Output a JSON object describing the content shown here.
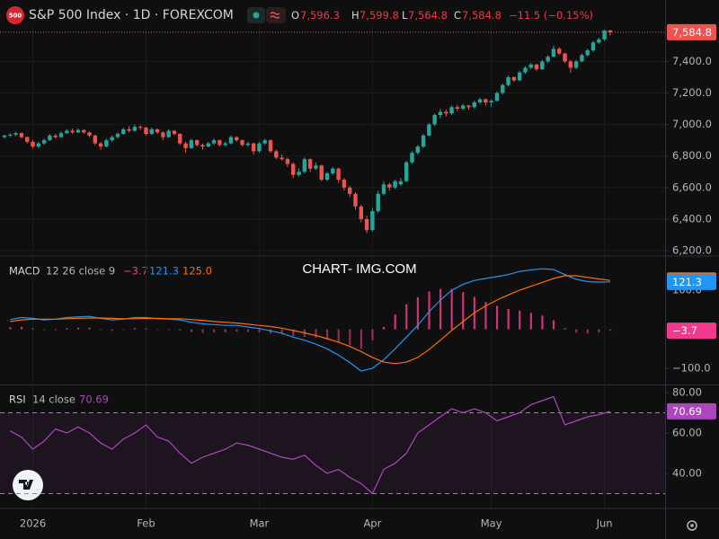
{
  "watermark": "CHART- IMG.COM",
  "chart_data": [
    {
      "type": "candlestick",
      "title": "S&P 500 Index · 1D · FOREXCOM",
      "symbol": "500",
      "legend_labels": [
        "O",
        "H",
        "L",
        "C"
      ],
      "legend_values": [
        "7,596.3",
        "7,599.8",
        "7,564.8",
        "7,584.8"
      ],
      "change": "−11.5 (−0.15%)",
      "last_label": "7,584.8",
      "up_color": "#26a69a",
      "down_color": "#ef5350",
      "grid": true,
      "xlim": [
        -0.8,
        116.7
      ],
      "xticks": [
        {
          "value": 5,
          "label": "2026"
        },
        {
          "value": 25,
          "label": "Feb"
        },
        {
          "value": 45,
          "label": "Mar"
        },
        {
          "value": 65,
          "label": "Apr"
        },
        {
          "value": 86,
          "label": "May"
        },
        {
          "value": 106,
          "label": "Jun"
        }
      ],
      "ylim": [
        6177,
        7630
      ],
      "yticks": [
        {
          "value": 6200,
          "label": "6,200.0"
        },
        {
          "value": 6400,
          "label": "6,400.0"
        },
        {
          "value": 6600,
          "label": "6,600.0"
        },
        {
          "value": 6800,
          "label": "6,800.0"
        },
        {
          "value": 7000,
          "label": "7,000.0"
        },
        {
          "value": 7200,
          "label": "7,200.0"
        },
        {
          "value": 7400,
          "label": "7,400.0"
        }
      ],
      "candles": [
        [
          6920,
          6935,
          6910,
          6930
        ],
        [
          6930,
          6945,
          6920,
          6935
        ],
        [
          6935,
          6955,
          6925,
          6945
        ],
        [
          6945,
          6950,
          6910,
          6920
        ],
        [
          6920,
          6925,
          6880,
          6890
        ],
        [
          6890,
          6900,
          6850,
          6860
        ],
        [
          6860,
          6890,
          6850,
          6880
        ],
        [
          6880,
          6910,
          6870,
          6900
        ],
        [
          6900,
          6940,
          6895,
          6930
        ],
        [
          6930,
          6940,
          6910,
          6920
        ],
        [
          6920,
          6955,
          6915,
          6945
        ],
        [
          6945,
          6970,
          6940,
          6960
        ],
        [
          6960,
          6975,
          6940,
          6950
        ],
        [
          6950,
          6975,
          6945,
          6965
        ],
        [
          6965,
          6970,
          6940,
          6950
        ],
        [
          6950,
          6955,
          6920,
          6930
        ],
        [
          6930,
          6935,
          6870,
          6880
        ],
        [
          6880,
          6890,
          6840,
          6860
        ],
        [
          6860,
          6910,
          6855,
          6900
        ],
        [
          6900,
          6930,
          6890,
          6920
        ],
        [
          6920,
          6950,
          6910,
          6940
        ],
        [
          6940,
          6980,
          6935,
          6970
        ],
        [
          6970,
          6990,
          6950,
          6960
        ],
        [
          6960,
          7000,
          6955,
          6985
        ],
        [
          6985,
          6995,
          6965,
          6980
        ],
        [
          6980,
          6985,
          6930,
          6940
        ],
        [
          6940,
          6980,
          6935,
          6970
        ],
        [
          6970,
          6975,
          6940,
          6950
        ],
        [
          6950,
          6955,
          6900,
          6920
        ],
        [
          6920,
          6970,
          6915,
          6960
        ],
        [
          6960,
          6965,
          6930,
          6940
        ],
        [
          6940,
          6945,
          6870,
          6880
        ],
        [
          6880,
          6890,
          6820,
          6850
        ],
        [
          6850,
          6910,
          6845,
          6900
        ],
        [
          6900,
          6905,
          6860,
          6870
        ],
        [
          6870,
          6880,
          6840,
          6860
        ],
        [
          6860,
          6890,
          6855,
          6880
        ],
        [
          6880,
          6910,
          6870,
          6900
        ],
        [
          6900,
          6905,
          6860,
          6870
        ],
        [
          6870,
          6890,
          6860,
          6880
        ],
        [
          6880,
          6930,
          6875,
          6920
        ],
        [
          6920,
          6925,
          6890,
          6900
        ],
        [
          6900,
          6905,
          6860,
          6870
        ],
        [
          6870,
          6890,
          6860,
          6880
        ],
        [
          6880,
          6885,
          6810,
          6830
        ],
        [
          6830,
          6890,
          6820,
          6880
        ],
        [
          6880,
          6910,
          6870,
          6900
        ],
        [
          6900,
          6905,
          6820,
          6830
        ],
        [
          6830,
          6840,
          6780,
          6790
        ],
        [
          6790,
          6810,
          6770,
          6780
        ],
        [
          6780,
          6790,
          6730,
          6750
        ],
        [
          6750,
          6760,
          6660,
          6680
        ],
        [
          6680,
          6720,
          6670,
          6700
        ],
        [
          6700,
          6790,
          6690,
          6780
        ],
        [
          6780,
          6785,
          6700,
          6720
        ],
        [
          6720,
          6760,
          6710,
          6740
        ],
        [
          6740,
          6745,
          6640,
          6650
        ],
        [
          6650,
          6700,
          6640,
          6690
        ],
        [
          6690,
          6730,
          6680,
          6720
        ],
        [
          6720,
          6725,
          6630,
          6650
        ],
        [
          6650,
          6660,
          6580,
          6600
        ],
        [
          6600,
          6610,
          6540,
          6560
        ],
        [
          6560,
          6570,
          6460,
          6480
        ],
        [
          6480,
          6490,
          6380,
          6400
        ],
        [
          6400,
          6420,
          6310,
          6330
        ],
        [
          6330,
          6470,
          6320,
          6450
        ],
        [
          6450,
          6580,
          6440,
          6560
        ],
        [
          6560,
          6640,
          6550,
          6620
        ],
        [
          6620,
          6630,
          6580,
          6600
        ],
        [
          6600,
          6650,
          6590,
          6640
        ],
        [
          6620,
          6660,
          6610,
          6640
        ],
        [
          6640,
          6770,
          6635,
          6760
        ],
        [
          6760,
          6830,
          6750,
          6820
        ],
        [
          6820,
          6870,
          6810,
          6860
        ],
        [
          6860,
          6940,
          6850,
          6930
        ],
        [
          6930,
          7010,
          6925,
          7000
        ],
        [
          7000,
          7070,
          6990,
          7060
        ],
        [
          7060,
          7100,
          7040,
          7080
        ],
        [
          7080,
          7095,
          7050,
          7070
        ],
        [
          7070,
          7120,
          7060,
          7110
        ],
        [
          7110,
          7125,
          7085,
          7100
        ],
        [
          7100,
          7130,
          7090,
          7120
        ],
        [
          7120,
          7125,
          7095,
          7110
        ],
        [
          7110,
          7150,
          7100,
          7140
        ],
        [
          7140,
          7170,
          7130,
          7160
        ],
        [
          7160,
          7165,
          7120,
          7140
        ],
        [
          7140,
          7160,
          7110,
          7150
        ],
        [
          7150,
          7210,
          7145,
          7200
        ],
        [
          7200,
          7260,
          7190,
          7250
        ],
        [
          7250,
          7310,
          7240,
          7300
        ],
        [
          7300,
          7305,
          7270,
          7280
        ],
        [
          7280,
          7340,
          7275,
          7330
        ],
        [
          7330,
          7370,
          7320,
          7360
        ],
        [
          7360,
          7390,
          7350,
          7380
        ],
        [
          7380,
          7385,
          7340,
          7350
        ],
        [
          7350,
          7410,
          7345,
          7400
        ],
        [
          7400,
          7440,
          7390,
          7430
        ],
        [
          7430,
          7500,
          7425,
          7480
        ],
        [
          7480,
          7490,
          7440,
          7450
        ],
        [
          7450,
          7455,
          7390,
          7400
        ],
        [
          7400,
          7410,
          7330,
          7360
        ],
        [
          7360,
          7410,
          7350,
          7400
        ],
        [
          7400,
          7450,
          7395,
          7440
        ],
        [
          7440,
          7480,
          7430,
          7470
        ],
        [
          7470,
          7530,
          7460,
          7520
        ],
        [
          7520,
          7550,
          7510,
          7540
        ],
        [
          7540,
          7600,
          7530,
          7596.3
        ],
        [
          7596.3,
          7599.8,
          7564.8,
          7584.8
        ]
      ]
    },
    {
      "type": "macd",
      "title": "MACD",
      "params": "12 26 close 9",
      "ylim": [
        -139,
        183
      ],
      "yticks": [
        {
          "value": -100,
          "label": "−100.0"
        },
        {
          "value": 100,
          "label": "100.0"
        }
      ],
      "x": [
        1,
        3,
        5,
        7,
        9,
        11,
        13,
        15,
        17,
        19,
        21,
        23,
        25,
        27,
        29,
        31,
        33,
        35,
        37,
        39,
        41,
        43,
        45,
        47,
        49,
        51,
        53,
        55,
        57,
        59,
        61,
        63,
        65,
        67,
        69,
        71,
        73,
        75,
        77,
        79,
        81,
        83,
        85,
        87,
        89,
        91,
        93,
        95,
        97,
        99,
        101,
        103,
        105,
        107
      ],
      "histogram": {
        "color": "#f23a8c",
        "last_label": "−3.7",
        "values": [
          5,
          6,
          2,
          -2,
          0,
          3,
          4,
          4,
          -1,
          -4,
          -1,
          3,
          2,
          -1,
          -1,
          -3,
          -7,
          -9,
          -8,
          -8,
          -6,
          -7,
          -8,
          -11,
          -13,
          -17,
          -19,
          -22,
          -26,
          -33,
          -41,
          -50,
          -28,
          6,
          38,
          64,
          82,
          97,
          103,
          103,
          95,
          83,
          70,
          60,
          52,
          48,
          42,
          35,
          23,
          3,
          -9,
          -11,
          -8,
          -3.7
        ]
      },
      "series": [
        {
          "color": "#2196f3",
          "last_label": "121.3",
          "values": [
            25,
            30,
            28,
            24,
            26,
            30,
            32,
            33,
            28,
            24,
            26,
            30,
            30,
            27,
            26,
            24,
            18,
            14,
            12,
            10,
            10,
            6,
            2,
            -4,
            -10,
            -20,
            -28,
            -38,
            -50,
            -66,
            -85,
            -107,
            -100,
            -78,
            -50,
            -20,
            10,
            45,
            75,
            100,
            115,
            125,
            130,
            135,
            140,
            148,
            152,
            155,
            153,
            140,
            128,
            122,
            121,
            121.3
          ]
        },
        {
          "color": "#ff6d00",
          "last_label": "125.0",
          "values": [
            20,
            24,
            26,
            26,
            26,
            27,
            28,
            29,
            29,
            28,
            27,
            27,
            28,
            28,
            27,
            27,
            25,
            23,
            20,
            18,
            16,
            13,
            10,
            7,
            3,
            -3,
            -9,
            -16,
            -24,
            -33,
            -44,
            -57,
            -72,
            -84,
            -88,
            -84,
            -72,
            -52,
            -28,
            -3,
            20,
            42,
            60,
            75,
            88,
            100,
            110,
            120,
            130,
            137,
            137,
            133,
            129,
            125.0
          ]
        }
      ]
    },
    {
      "type": "rsi",
      "title": "RSI",
      "params": "14 close",
      "color": "#ab47bc",
      "last_label": "70.69",
      "ylim": [
        23.1,
        83.1
      ],
      "yticks": [
        {
          "value": 40,
          "label": "40.00"
        },
        {
          "value": 60,
          "label": "60.00"
        },
        {
          "value": 80,
          "label": "80.00"
        }
      ],
      "bands": [
        30,
        70
      ],
      "x": [
        1,
        3,
        5,
        7,
        9,
        11,
        13,
        15,
        17,
        19,
        21,
        23,
        25,
        27,
        29,
        31,
        33,
        35,
        37,
        39,
        41,
        43,
        45,
        47,
        49,
        51,
        53,
        55,
        57,
        59,
        61,
        63,
        65,
        67,
        69,
        71,
        73,
        75,
        77,
        79,
        81,
        83,
        85,
        87,
        89,
        91,
        93,
        95,
        97,
        99,
        101,
        103,
        105,
        107
      ],
      "values": [
        61,
        58,
        52,
        56,
        62,
        60,
        63,
        60,
        55,
        52,
        57,
        60,
        64,
        58,
        56,
        50,
        45,
        48,
        50,
        52,
        55,
        54,
        52,
        50,
        48,
        47,
        49,
        44,
        40,
        42,
        38,
        35,
        30,
        42,
        45,
        50,
        60,
        64,
        68,
        72,
        70,
        72,
        70,
        66,
        68,
        70,
        74,
        76,
        78,
        64,
        66,
        68,
        69,
        70.69
      ]
    }
  ]
}
